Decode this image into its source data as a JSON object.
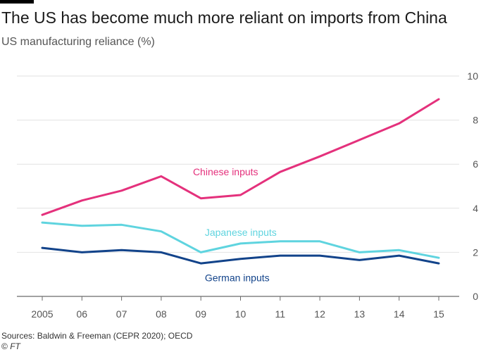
{
  "header": {
    "title": "The US has become much more reliant on imports from China",
    "subtitle": "US manufacturing reliance (%)"
  },
  "footer": {
    "source": "Sources: Baldwin & Freeman (CEPR 2020); OECD",
    "copyright_symbol": "©",
    "brand": "FT"
  },
  "chart_data": {
    "type": "line",
    "title": "The US has become much more reliant on imports from China",
    "subtitle": "US manufacturing reliance (%)",
    "xlabel": "",
    "ylabel": "US manufacturing reliance (%)",
    "x": [
      2005,
      2006,
      2007,
      2008,
      2009,
      2010,
      2011,
      2012,
      2013,
      2014,
      2015
    ],
    "x_tick_labels": [
      "2005",
      "06",
      "07",
      "08",
      "09",
      "10",
      "11",
      "12",
      "13",
      "14",
      "15"
    ],
    "y_ticks": [
      0,
      2,
      4,
      6,
      8,
      10
    ],
    "y_tick_labels": [
      "0",
      "2",
      "4",
      "6",
      "8",
      "10"
    ],
    "ylim": [
      0,
      10
    ],
    "xlim": [
      2005,
      2015
    ],
    "grid": true,
    "y_axis_side": "right",
    "series": [
      {
        "name": "Chinese inputs",
        "color": "#e4317c",
        "values": [
          3.7,
          4.35,
          4.8,
          5.45,
          4.45,
          4.6,
          5.65,
          6.35,
          7.1,
          7.85,
          8.95
        ],
        "label_x": 2008.8,
        "label_y": 5.65
      },
      {
        "name": "Japanese inputs",
        "color": "#5fd4df",
        "values": [
          3.35,
          3.2,
          3.25,
          2.95,
          2.0,
          2.4,
          2.5,
          2.5,
          2.0,
          2.1,
          1.75
        ],
        "label_x": 2009.1,
        "label_y": 2.9
      },
      {
        "name": "German inputs",
        "color": "#12438a",
        "values": [
          2.2,
          2.0,
          2.1,
          2.0,
          1.5,
          1.7,
          1.85,
          1.85,
          1.65,
          1.85,
          1.5
        ],
        "label_x": 2009.1,
        "label_y": 0.85
      }
    ]
  },
  "colors": {
    "gridline": "#e2e2e2",
    "axis_text": "#555555",
    "axis_line": "#6b6b6b",
    "title": "#1a1a1a",
    "rule": "#000000"
  }
}
